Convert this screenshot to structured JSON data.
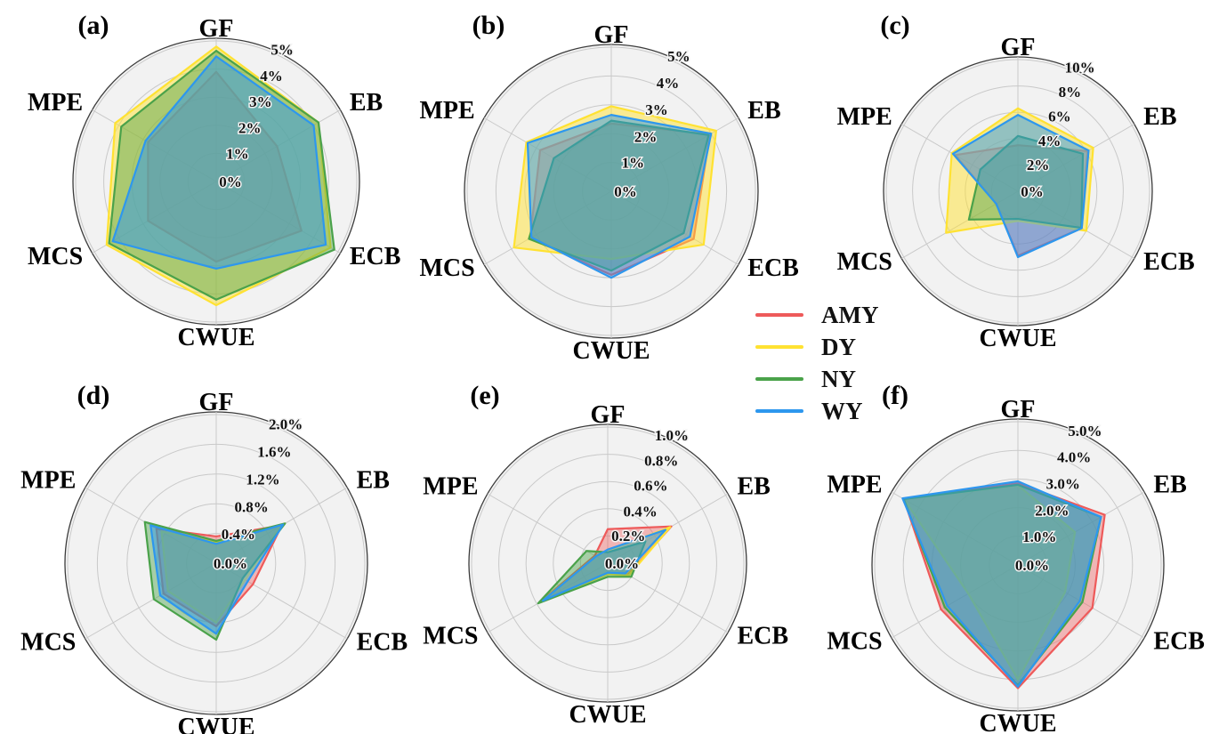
{
  "legend": {
    "items": [
      {
        "label": "AMY",
        "color": "#EE5A5A",
        "fill": "rgba(238,90,90,0.40)"
      },
      {
        "label": "DY",
        "color": "#FFE232",
        "fill": "rgba(255,226,50,0.50)"
      },
      {
        "label": "NY",
        "color": "#4AA24A",
        "fill": "rgba(74,162,74,0.45)"
      },
      {
        "label": "WY",
        "color": "#2D97EE",
        "fill": "rgba(45,151,238,0.50)"
      }
    ]
  },
  "chart_data": [
    {
      "type": "radar",
      "panel": "(a)",
      "categories": [
        "GF",
        "EB",
        "ECB",
        "CWUE",
        "MCS",
        "MPE"
      ],
      "ticks": [
        "0%",
        "1%",
        "2%",
        "3%",
        "4%",
        "5%"
      ],
      "tick_values": [
        0,
        1,
        2,
        3,
        4,
        5
      ],
      "rmax": 5,
      "grid": "on",
      "series": [
        {
          "name": "AMY",
          "values": [
            3.9,
            2.5,
            3.5,
            2.85,
            2.8,
            2.8
          ]
        },
        {
          "name": "DY",
          "values": [
            4.8,
            4.2,
            4.7,
            4.4,
            4.5,
            4.15
          ]
        },
        {
          "name": "NY",
          "values": [
            4.65,
            4.2,
            4.85,
            4.2,
            4.4,
            3.9
          ]
        },
        {
          "name": "WY",
          "values": [
            4.45,
            4.0,
            4.5,
            3.1,
            4.25,
            2.9
          ]
        }
      ]
    },
    {
      "type": "radar",
      "panel": "(b)",
      "categories": [
        "GF",
        "EB",
        "ECB",
        "CWUE",
        "MCS",
        "MPE"
      ],
      "ticks": [
        "0%",
        "1%",
        "2%",
        "3%",
        "4%",
        "5%"
      ],
      "tick_values": [
        0,
        1,
        2,
        3,
        4,
        5
      ],
      "rmax": 5,
      "grid": "on",
      "series": [
        {
          "name": "AMY",
          "values": [
            2.35,
            3.95,
            3.3,
            2.9,
            3.25,
            2.85
          ]
        },
        {
          "name": "DY",
          "values": [
            2.95,
            4.2,
            3.7,
            2.35,
            3.9,
            3.4
          ]
        },
        {
          "name": "NY",
          "values": [
            2.45,
            3.9,
            2.9,
            2.75,
            3.3,
            2.3
          ]
        },
        {
          "name": "WY",
          "values": [
            2.65,
            4.0,
            3.15,
            3.0,
            3.2,
            3.35
          ]
        }
      ]
    },
    {
      "type": "radar",
      "panel": "(c)",
      "categories": [
        "GF",
        "EB",
        "ECB",
        "CWUE",
        "MCS",
        "MPE"
      ],
      "ticks": [
        "0%",
        "2%",
        "4%",
        "6%",
        "8%",
        "10%"
      ],
      "tick_values": [
        0,
        2,
        4,
        6,
        8,
        10
      ],
      "rmax": 10,
      "grid": "on",
      "series": [
        {
          "name": "AMY",
          "values": [
            3.5,
            6.1,
            5.6,
            4.9,
            1.9,
            5.5
          ]
        },
        {
          "name": "DY",
          "values": [
            6.3,
            6.6,
            6.0,
            2.25,
            6.3,
            5.8
          ]
        },
        {
          "name": "NY",
          "values": [
            4.2,
            5.7,
            5.55,
            2.1,
            4.3,
            3.3
          ]
        },
        {
          "name": "WY",
          "values": [
            5.8,
            6.2,
            5.6,
            5.0,
            1.9,
            5.7
          ]
        }
      ]
    },
    {
      "type": "radar",
      "panel": "(d)",
      "categories": [
        "GF",
        "EB",
        "ECB",
        "CWUE",
        "MCS",
        "MPE"
      ],
      "ticks": [
        "0.0%",
        "0.4%",
        "0.8%",
        "1.2%",
        "1.6%",
        "2.0%"
      ],
      "tick_values": [
        0,
        0.4,
        0.8,
        1.2,
        1.6,
        2.0
      ],
      "rmax": 2.0,
      "grid": "on",
      "series": [
        {
          "name": "AMY",
          "values": [
            0.36,
            1.02,
            0.57,
            0.85,
            0.82,
            0.93
          ]
        },
        {
          "name": "DY",
          "values": [
            0.28,
            1.0,
            0.45,
            0.8,
            0.75,
            0.85
          ]
        },
        {
          "name": "NY",
          "values": [
            0.3,
            1.07,
            0.41,
            1.03,
            0.97,
            1.11
          ]
        },
        {
          "name": "WY",
          "values": [
            0.26,
            1.04,
            0.49,
            0.95,
            0.87,
            1.02
          ]
        }
      ]
    },
    {
      "type": "radar",
      "panel": "(e)",
      "categories": [
        "GF",
        "EB",
        "ECB",
        "CWUE",
        "MCS",
        "MPE"
      ],
      "ticks": [
        "0.0%",
        "0.2%",
        "0.4%",
        "0.6%",
        "0.8%",
        "1.0%"
      ],
      "tick_values": [
        0,
        0.2,
        0.4,
        0.6,
        0.8,
        1.0
      ],
      "rmax": 1.0,
      "grid": "on",
      "series": [
        {
          "name": "AMY",
          "values": [
            0.25,
            0.54,
            0.17,
            0.07,
            0.58,
            0.11
          ]
        },
        {
          "name": "DY",
          "values": [
            0.09,
            0.53,
            0.18,
            0.08,
            0.56,
            0.1
          ]
        },
        {
          "name": "NY",
          "values": [
            0.08,
            0.32,
            0.2,
            0.1,
            0.59,
            0.18
          ]
        },
        {
          "name": "WY",
          "values": [
            0.1,
            0.49,
            0.15,
            0.07,
            0.55,
            0.1
          ]
        }
      ]
    },
    {
      "type": "radar",
      "panel": "(f)",
      "categories": [
        "GF",
        "EB",
        "ECB",
        "CWUE",
        "MCS",
        "MPE"
      ],
      "ticks": [
        "0.0%",
        "1.0%",
        "2.0%",
        "3.0%",
        "4.0%",
        "5.0%"
      ],
      "tick_values": [
        0,
        1,
        2,
        3,
        4,
        5
      ],
      "rmax": 5,
      "grid": "on",
      "series": [
        {
          "name": "AMY",
          "values": [
            2.85,
            3.5,
            3.0,
            4.3,
            3.1,
            4.6
          ]
        },
        {
          "name": "DY",
          "values": [
            2.78,
            2.3,
            1.9,
            4.0,
            2.0,
            4.6
          ]
        },
        {
          "name": "NY",
          "values": [
            2.8,
            3.35,
            2.6,
            4.2,
            2.95,
            4.6
          ]
        },
        {
          "name": "WY",
          "values": [
            2.92,
            3.35,
            2.5,
            4.25,
            2.85,
            4.65
          ]
        }
      ]
    }
  ]
}
